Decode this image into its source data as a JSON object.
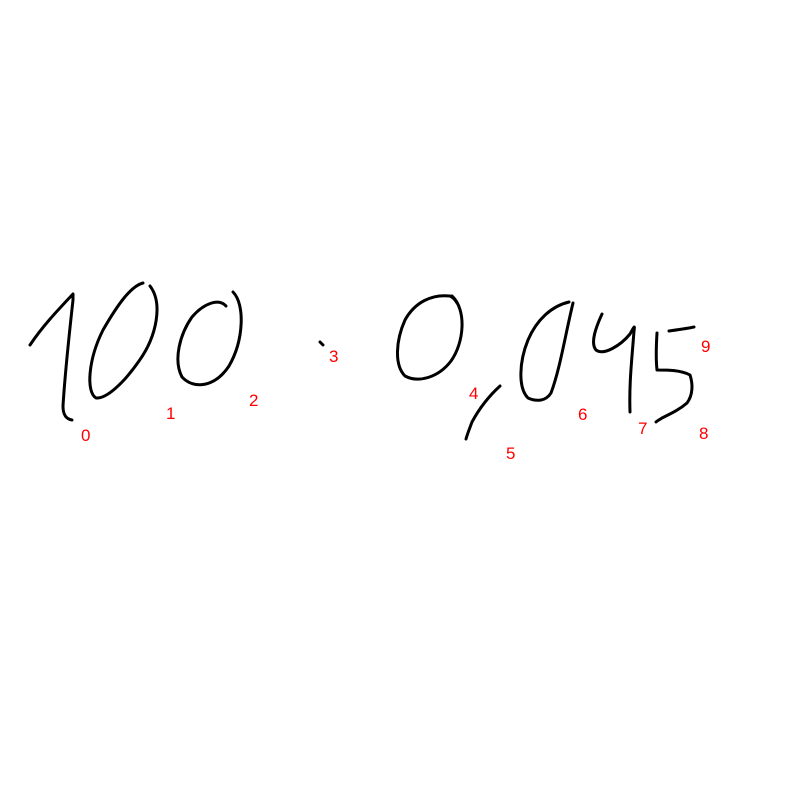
{
  "colors": {
    "background": "#ffffff",
    "ink": "#000000",
    "label": "#ff0000"
  },
  "strokes": [
    {
      "id": 0,
      "label": "0",
      "shape": "digit-one"
    },
    {
      "id": 1,
      "label": "1",
      "shape": "digit-zero"
    },
    {
      "id": 2,
      "label": "2",
      "shape": "digit-zero"
    },
    {
      "id": 3,
      "label": "3",
      "shape": "dot"
    },
    {
      "id": 4,
      "label": "4",
      "shape": "digit-zero"
    },
    {
      "id": 5,
      "label": "5",
      "shape": "comma"
    },
    {
      "id": 6,
      "label": "6",
      "shape": "digit-zero"
    },
    {
      "id": 7,
      "label": "7",
      "shape": "digit-four"
    },
    {
      "id": 8,
      "label": "8",
      "shape": "digit-five-body"
    },
    {
      "id": 9,
      "label": "9",
      "shape": "digit-five-top-bar"
    }
  ]
}
